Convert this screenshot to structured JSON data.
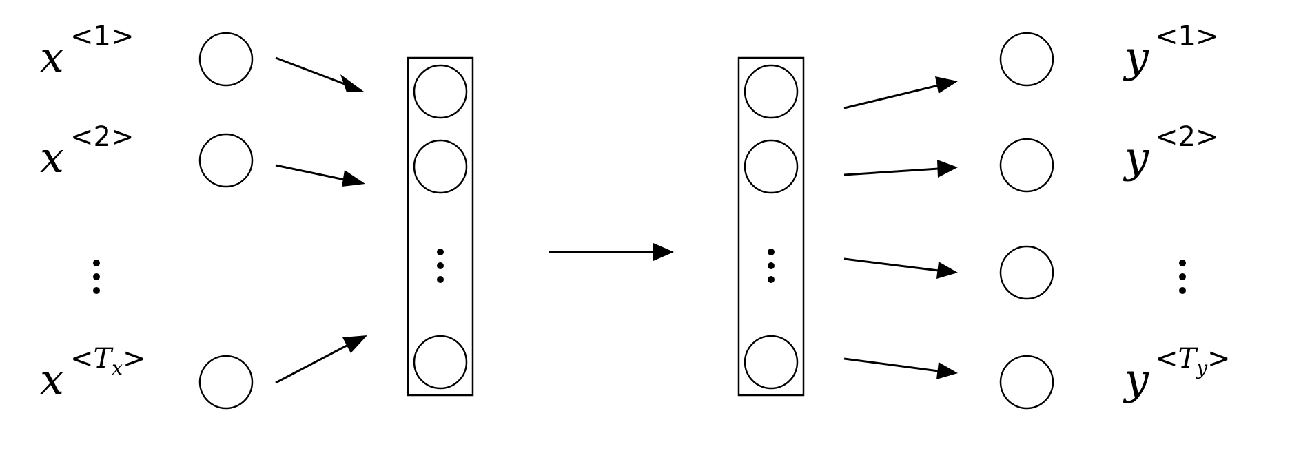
{
  "inputs": [
    {
      "base": "x",
      "sup_open": "<",
      "sup": "1",
      "sup_close": ">"
    },
    {
      "base": "x",
      "sup_open": "<",
      "sup": "2",
      "sup_close": ">"
    },
    {
      "base": "x",
      "sup_open": "<",
      "sup": "T",
      "sub": "x",
      "sup_close": ">"
    }
  ],
  "outputs": [
    {
      "base": "y",
      "sup_open": "<",
      "sup": "1",
      "sup_close": ">"
    },
    {
      "base": "y",
      "sup_open": "<",
      "sup": "2",
      "sup_close": ">"
    },
    {
      "base": "y",
      "sup_open": "<",
      "sup": "T",
      "sub": "y",
      "sup_close": ">"
    }
  ],
  "icons": {
    "vertical_ellipsis": "vertical-ellipsis-icon",
    "arrow": "arrow-icon",
    "node": "circle-node-icon"
  },
  "colors": {
    "stroke": "#000000",
    "background": "#ffffff"
  }
}
